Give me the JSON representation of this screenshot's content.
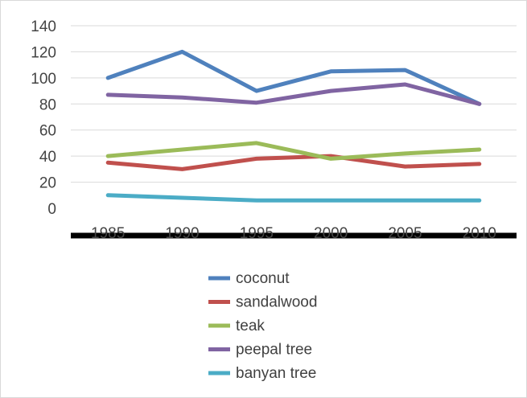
{
  "chart_data": {
    "type": "line",
    "title": "",
    "xlabel": "",
    "ylabel": "",
    "categories": [
      "1985",
      "1990",
      "1995",
      "2000",
      "2005",
      "2010"
    ],
    "ylim": [
      0,
      140
    ],
    "yticks": [
      0,
      20,
      40,
      60,
      80,
      100,
      120,
      140
    ],
    "grid": "horizontal",
    "legend": "bottom",
    "series": [
      {
        "name": "coconut",
        "color": "#4F81BD",
        "values": [
          100,
          120,
          90,
          105,
          106,
          80
        ]
      },
      {
        "name": "sandalwood",
        "color": "#C0504D",
        "values": [
          35,
          30,
          38,
          40,
          32,
          34
        ]
      },
      {
        "name": "teak",
        "color": "#9BBB59",
        "values": [
          40,
          45,
          50,
          38,
          42,
          45
        ]
      },
      {
        "name": "peepal tree",
        "color": "#8064A2",
        "values": [
          87,
          85,
          81,
          90,
          95,
          80
        ]
      },
      {
        "name": "banyan tree",
        "color": "#4BACC6",
        "values": [
          10,
          8,
          6,
          6,
          6,
          6
        ]
      }
    ]
  }
}
